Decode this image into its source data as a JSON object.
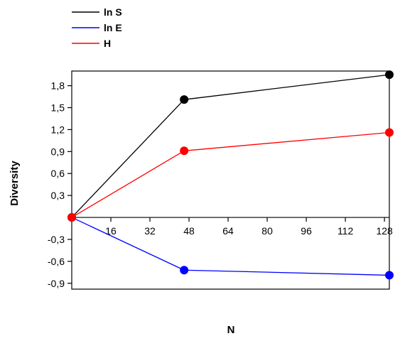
{
  "chart_data": {
    "type": "line",
    "xlabel": "N",
    "ylabel": "Diversity",
    "xlim": [
      0,
      130
    ],
    "ylim": [
      -0.98,
      2.0
    ],
    "x_ticks": [
      16,
      32,
      48,
      64,
      80,
      96,
      112,
      128
    ],
    "x_tick_labels": [
      "16",
      "32",
      "48",
      "64",
      "80",
      "96",
      "112",
      "128"
    ],
    "y_ticks": [
      1.8,
      1.5,
      1.2,
      0.9,
      0.6,
      0.3,
      -0.3,
      -0.6,
      -0.9
    ],
    "y_tick_labels": [
      "1,8",
      "1,5",
      "1,2",
      "0,9",
      "0,6",
      "0,3",
      "-0,3",
      "-0,6",
      "-0,9"
    ],
    "grid": false,
    "legend_position": "top-left",
    "series": [
      {
        "name": "ln S",
        "color": "#000000",
        "x": [
          0,
          46,
          130
        ],
        "y": [
          0,
          1.61,
          1.95
        ]
      },
      {
        "name": "ln E",
        "color": "#0000ff",
        "x": [
          0,
          46,
          130
        ],
        "y": [
          0,
          -0.72,
          -0.79
        ]
      },
      {
        "name": "H",
        "color": "#ff0000",
        "x": [
          0,
          46,
          130
        ],
        "y": [
          0,
          0.91,
          1.16
        ]
      }
    ]
  }
}
